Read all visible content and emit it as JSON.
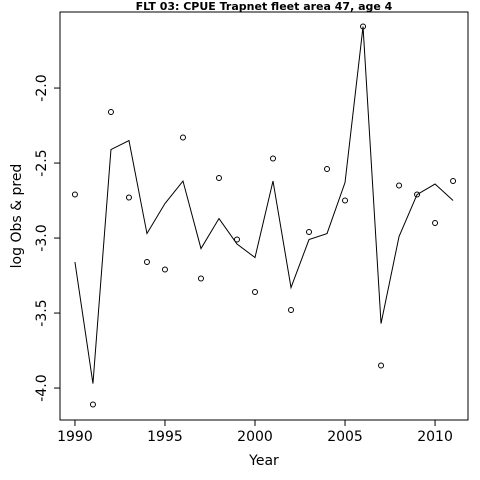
{
  "chart_data": {
    "type": "line",
    "title": "FLT 03: CPUE Trapnet fleet area 47, age 4",
    "x_label": "Year",
    "y_label": "log Obs & pred",
    "x": [
      1990,
      1991,
      1992,
      1993,
      1994,
      1995,
      1996,
      1997,
      1998,
      1999,
      2000,
      2001,
      2002,
      2003,
      2004,
      2005,
      2006,
      2007,
      2008,
      2009,
      2010,
      2011
    ],
    "series": [
      {
        "color": "#000000",
        "style": "points",
        "values": [
          -2.71,
          -4.11,
          -2.16,
          -2.73,
          -3.16,
          -3.21,
          -2.33,
          -3.27,
          -2.6,
          -3.01,
          -3.36,
          -2.47,
          -3.48,
          -2.96,
          -2.54,
          -2.75,
          -1.59,
          -3.85,
          -2.65,
          -2.71,
          -2.9,
          -2.62
        ]
      },
      {
        "color": "#000000",
        "style": "line",
        "values": [
          -3.16,
          -3.97,
          -2.41,
          -2.35,
          -2.97,
          -2.77,
          -2.62,
          -3.07,
          -2.87,
          -3.04,
          -3.13,
          -2.62,
          -3.33,
          -3.01,
          -2.97,
          -2.63,
          -1.59,
          -3.57,
          -2.99,
          -2.71,
          -2.64,
          -2.75
        ]
      }
    ],
    "xlim": [
      1989.17,
      2011.83
    ],
    "ylim": [
      -4.213,
      -1.493
    ],
    "xticks": [
      1990,
      1995,
      2000,
      2005,
      2010
    ],
    "yticks": [
      {
        "value": -4,
        "label": "-4.0"
      },
      -3.5,
      {
        "value": -3,
        "label": "-3.0"
      },
      -2.5,
      {
        "value": -2,
        "label": "-2.0"
      }
    ]
  }
}
